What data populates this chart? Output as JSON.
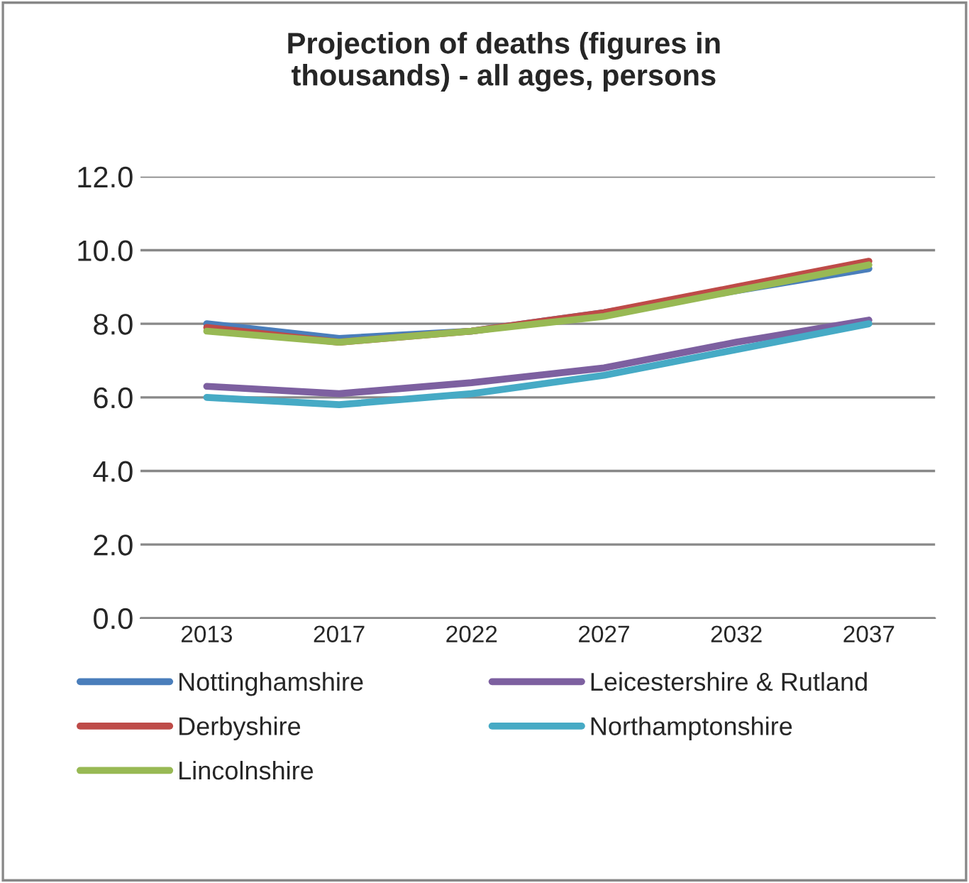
{
  "chart_data": {
    "type": "line",
    "title": "Projection of deaths (figures in\nthousands) - all ages, persons",
    "categories": [
      "2013",
      "2017",
      "2022",
      "2027",
      "2032",
      "2037"
    ],
    "series": [
      {
        "name": "Nottinghamshire",
        "color": "#4a7ebb",
        "values": [
          8.0,
          7.6,
          7.8,
          8.3,
          8.9,
          9.5
        ]
      },
      {
        "name": "Derbyshire",
        "color": "#be4b48",
        "values": [
          7.9,
          7.5,
          7.8,
          8.3,
          9.0,
          9.7
        ]
      },
      {
        "name": "Lincolnshire",
        "color": "#98b954",
        "values": [
          7.8,
          7.5,
          7.8,
          8.2,
          8.9,
          9.6
        ]
      },
      {
        "name": "Leicestershire & Rutland",
        "color": "#7d60a0",
        "values": [
          6.3,
          6.1,
          6.4,
          6.8,
          7.5,
          8.1
        ]
      },
      {
        "name": "Northamptonshire",
        "color": "#46aac5",
        "values": [
          6.0,
          5.8,
          6.1,
          6.6,
          7.3,
          8.0
        ]
      }
    ],
    "ylim": [
      0,
      12
    ],
    "yticks": [
      {
        "value": 0,
        "label": "0.0"
      },
      {
        "value": 2,
        "label": "2.0"
      },
      {
        "value": 4,
        "label": "4.0"
      },
      {
        "value": 6,
        "label": "6.0"
      },
      {
        "value": 8,
        "label": "8.0"
      },
      {
        "value": 10,
        "label": "10.0"
      },
      {
        "value": 12,
        "label": "12.0"
      }
    ],
    "grid": "y",
    "legend": "bottom",
    "marker": "none",
    "line_style": "solid"
  }
}
